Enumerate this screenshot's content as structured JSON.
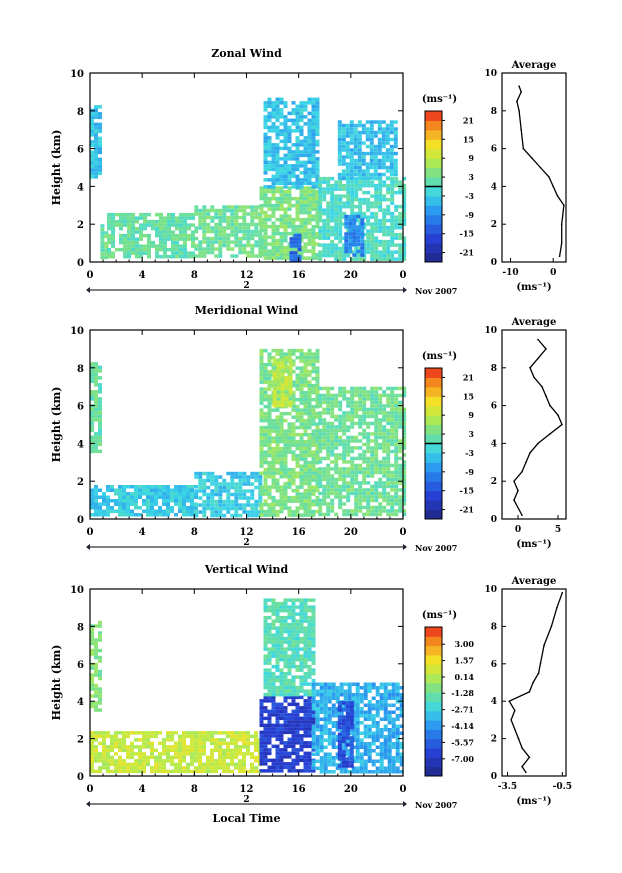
{
  "chart_data": [
    {
      "type": "heatmap",
      "title": "Zonal Wind",
      "xlabel": "",
      "ylabel": "Height (km)",
      "xlim": [
        0,
        24
      ],
      "ylim": [
        0,
        10
      ],
      "xticks": [
        "0",
        "4",
        "8",
        "12",
        "16",
        "20",
        "0"
      ],
      "yticks": [
        "0",
        "2",
        "4",
        "6",
        "8",
        "10"
      ],
      "date_marker": "2",
      "date_label": "Nov 2007",
      "colorbar": {
        "unit_label": "(ms⁻¹)",
        "range": [
          -24,
          24
        ],
        "ticks": [
          21,
          15,
          9,
          3,
          -3,
          -9,
          -15,
          -21
        ],
        "tick_labels": [
          "21",
          "15",
          "9",
          "3",
          "-3",
          "-9",
          "-15",
          "-21"
        ],
        "zero_line": 0
      },
      "regions": [
        {
          "x": [
            0,
            0.8
          ],
          "y": [
            4.5,
            8.3
          ],
          "v": -4
        },
        {
          "x": [
            0.8,
            1.3
          ],
          "y": [
            0.3,
            2.0
          ],
          "v": 3
        },
        {
          "x": [
            1.3,
            8
          ],
          "y": [
            0.3,
            2.6
          ],
          "v": 2
        },
        {
          "x": [
            8,
            13
          ],
          "y": [
            0.3,
            3.0
          ],
          "v": 3
        },
        {
          "x": [
            13,
            17.5
          ],
          "y": [
            0.2,
            4.0
          ],
          "v": 4
        },
        {
          "x": [
            13.3,
            17.5
          ],
          "y": [
            4.0,
            8.7
          ],
          "v": -4
        },
        {
          "x": [
            15.3,
            16.2
          ],
          "y": [
            0.2,
            1.5
          ],
          "v": -12
        },
        {
          "x": [
            17.5,
            24
          ],
          "y": [
            0.2,
            4.5
          ],
          "v": 0
        },
        {
          "x": [
            19,
            23.5
          ],
          "y": [
            4.5,
            7.5
          ],
          "v": -4
        },
        {
          "x": [
            19.5,
            21
          ],
          "y": [
            0.3,
            2.5
          ],
          "v": -9
        }
      ],
      "average_profile": {
        "title": "Average",
        "xlabel": "(ms⁻¹)",
        "xlim": [
          -12,
          3
        ],
        "xticks": [
          "-10",
          "0"
        ],
        "yticks": [
          "0",
          "2",
          "4",
          "6",
          "8",
          "10"
        ],
        "ylim": [
          0,
          10
        ],
        "height": [
          0.3,
          1,
          2,
          3,
          3.5,
          4,
          4.5,
          5,
          5.5,
          6,
          7,
          8,
          8.5,
          9,
          9.3
        ],
        "speed": [
          1.5,
          2,
          2,
          2.5,
          1,
          0,
          -1,
          -3,
          -5,
          -7,
          -7.5,
          -8,
          -8.5,
          -7.5,
          -8
        ]
      }
    },
    {
      "type": "heatmap",
      "title": "Meridional Wind",
      "xlabel": "",
      "ylabel": "Height (km)",
      "xlim": [
        0,
        24
      ],
      "ylim": [
        0,
        10
      ],
      "xticks": [
        "0",
        "4",
        "8",
        "12",
        "16",
        "20",
        "0"
      ],
      "yticks": [
        "0",
        "2",
        "4",
        "6",
        "8",
        "10"
      ],
      "date_marker": "2",
      "date_label": "Nov 2007",
      "colorbar": {
        "unit_label": "(ms⁻¹)",
        "range": [
          -24,
          24
        ],
        "ticks": [
          21,
          15,
          9,
          3,
          -3,
          -9,
          -15,
          -21
        ],
        "tick_labels": [
          "21",
          "15",
          "9",
          "3",
          "-3",
          "-9",
          "-15",
          "-21"
        ],
        "zero_line": 0
      },
      "regions": [
        {
          "x": [
            0,
            0.8
          ],
          "y": [
            3.5,
            8.3
          ],
          "v": 2
        },
        {
          "x": [
            0,
            8
          ],
          "y": [
            0.2,
            1.8
          ],
          "v": -3
        },
        {
          "x": [
            8,
            13
          ],
          "y": [
            0.2,
            2.5
          ],
          "v": -3
        },
        {
          "x": [
            13,
            17.5
          ],
          "y": [
            0.2,
            9.0
          ],
          "v": 4
        },
        {
          "x": [
            14,
            15.5
          ],
          "y": [
            6,
            8.5
          ],
          "v": 9
        },
        {
          "x": [
            17.5,
            24
          ],
          "y": [
            0.2,
            7.0
          ],
          "v": 3
        }
      ],
      "average_profile": {
        "title": "Average",
        "xlabel": "(ms⁻¹)",
        "xlim": [
          -2,
          6
        ],
        "xticks": [
          "0",
          "5"
        ],
        "yticks": [
          "0",
          "2",
          "4",
          "6",
          "8",
          "10"
        ],
        "ylim": [
          0,
          10
        ],
        "height": [
          0.2,
          1,
          1.5,
          2,
          2.5,
          3,
          3.5,
          4,
          4.5,
          5,
          5.5,
          6,
          6.5,
          7,
          7.5,
          8,
          8.5,
          9,
          9.5
        ],
        "speed": [
          0.5,
          -0.5,
          0,
          -0.5,
          0.5,
          1,
          1.5,
          2.5,
          4,
          5.5,
          5,
          4,
          3.5,
          3,
          2,
          1.5,
          2.5,
          3.5,
          2.5
        ]
      }
    },
    {
      "type": "heatmap",
      "title": "Vertical Wind",
      "xlabel": "Local Time",
      "ylabel": "Height (km)",
      "xlim": [
        0,
        24
      ],
      "ylim": [
        0,
        10
      ],
      "xticks": [
        "0",
        "4",
        "8",
        "12",
        "16",
        "20",
        "0"
      ],
      "yticks": [
        "0",
        "2",
        "4",
        "6",
        "8",
        "10"
      ],
      "date_marker": "2",
      "date_label": "Nov 2007",
      "colorbar": {
        "unit_label": "(ms⁻¹)",
        "range": [
          -8.5,
          4.5
        ],
        "ticks": [
          3.0,
          1.57,
          0.14,
          -1.28,
          -2.71,
          -4.14,
          -5.57,
          -7.0
        ],
        "tick_labels": [
          "3.00",
          "1.57",
          "0.14",
          "-1.28",
          "-2.71",
          "-4.14",
          "-5.57",
          "-7.00"
        ],
        "zero_line": null
      },
      "regions": [
        {
          "x": [
            0,
            0.8
          ],
          "y": [
            3.5,
            8.3
          ],
          "v": -0.8
        },
        {
          "x": [
            0,
            13
          ],
          "y": [
            0.2,
            2.4
          ],
          "v": 0.6
        },
        {
          "x": [
            13,
            17
          ],
          "y": [
            0.2,
            4.3
          ],
          "v": -6.5
        },
        {
          "x": [
            13.3,
            17
          ],
          "y": [
            4.3,
            9.5
          ],
          "v": -1.8
        },
        {
          "x": [
            17,
            24
          ],
          "y": [
            0.2,
            5.0
          ],
          "v": -3.5
        },
        {
          "x": [
            19,
            20
          ],
          "y": [
            0.5,
            4
          ],
          "v": -6
        }
      ],
      "average_profile": {
        "title": "Average",
        "xlabel": "(ms⁻¹)",
        "xlim": [
          -3.8,
          -0.3
        ],
        "xticks": [
          "-3.5",
          "-0.5"
        ],
        "yticks": [
          "0",
          "2",
          "4",
          "6",
          "8",
          "10"
        ],
        "ylim": [
          0,
          10
        ],
        "height": [
          0.2,
          0.5,
          1,
          1.5,
          2,
          2.5,
          3,
          3.5,
          4,
          4.5,
          5,
          5.5,
          6,
          7,
          8,
          9,
          9.8
        ],
        "speed": [
          -2.5,
          -2.7,
          -2.3,
          -2.7,
          -2.9,
          -3.1,
          -3.3,
          -3.1,
          -3.4,
          -2.3,
          -2.1,
          -1.8,
          -1.7,
          -1.5,
          -1.1,
          -0.8,
          -0.5
        ]
      }
    }
  ]
}
